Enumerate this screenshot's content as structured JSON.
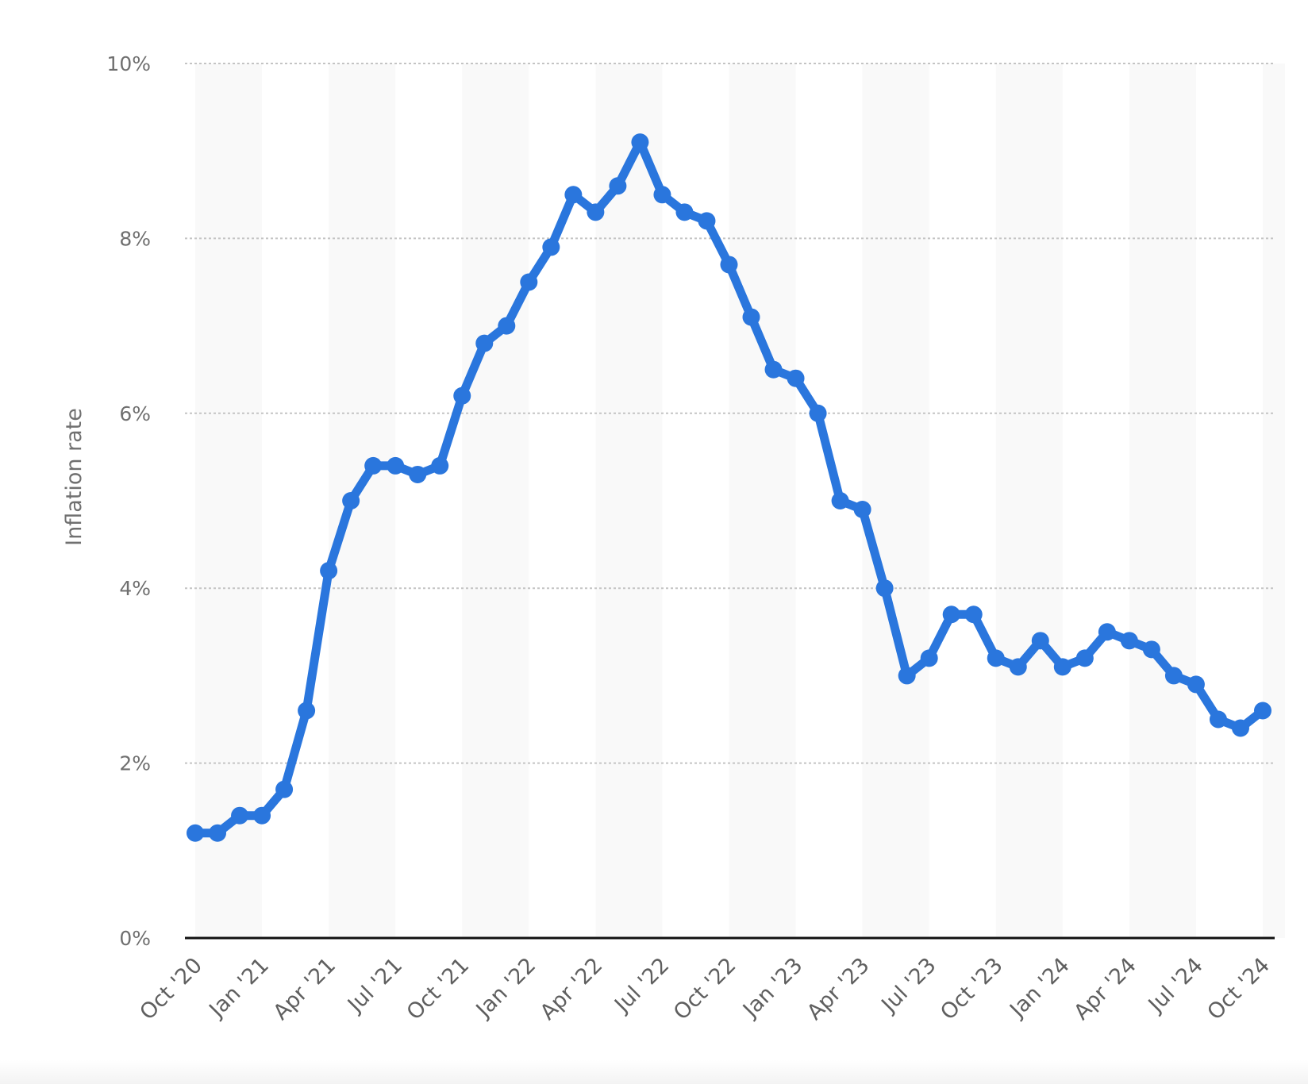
{
  "chart_data": {
    "type": "line",
    "title": "",
    "xlabel": "",
    "ylabel": "Inflation rate",
    "ylim": [
      0,
      10
    ],
    "y_ticks": [
      "0%",
      "2%",
      "4%",
      "6%",
      "8%",
      "10%"
    ],
    "x_tick_labels": [
      "Oct '20",
      "Jan '21",
      "Apr '21",
      "Jul '21",
      "Oct '21",
      "Jan '22",
      "Apr '22",
      "Jul '22",
      "Oct '22",
      "Jan '23",
      "Apr '23",
      "Jul '23",
      "Oct '23",
      "Jan '24",
      "Apr '24",
      "Jul '24",
      "Oct '24"
    ],
    "grid": true,
    "line_color": "#2a76dd",
    "series": [
      {
        "x": [
          "Oct '20",
          "Nov '20",
          "Dec '20",
          "Jan '21",
          "Feb '21",
          "Mar '21",
          "Apr '21",
          "May '21",
          "Jun '21",
          "Jul '21",
          "Aug '21",
          "Sep '21",
          "Oct '21",
          "Nov '21",
          "Dec '21",
          "Jan '22",
          "Feb '22",
          "Mar '22",
          "Apr '22",
          "May '22",
          "Jun '22",
          "Jul '22",
          "Aug '22",
          "Sep '22",
          "Oct '22",
          "Nov '22",
          "Dec '22",
          "Jan '23",
          "Feb '23",
          "Mar '23",
          "Apr '23",
          "May '23",
          "Jun '23",
          "Jul '23",
          "Aug '23",
          "Sep '23",
          "Oct '23",
          "Nov '23",
          "Dec '23",
          "Jan '24",
          "Feb '24",
          "Mar '24",
          "Apr '24",
          "May '24",
          "Jun '24",
          "Jul '24",
          "Aug '24",
          "Sep '24",
          "Oct '24"
        ],
        "values": [
          1.2,
          1.2,
          1.4,
          1.4,
          1.7,
          2.6,
          4.2,
          5.0,
          5.4,
          5.4,
          5.3,
          5.4,
          6.2,
          6.8,
          7.0,
          7.5,
          7.9,
          8.5,
          8.3,
          8.6,
          9.1,
          8.5,
          8.3,
          8.2,
          7.7,
          7.1,
          6.5,
          6.4,
          6.0,
          5.0,
          4.9,
          4.0,
          3.0,
          3.2,
          3.7,
          3.7,
          3.2,
          3.1,
          3.4,
          3.1,
          3.2,
          3.5,
          3.4,
          3.3,
          3.0,
          2.9,
          2.5,
          2.4,
          2.6
        ]
      }
    ]
  }
}
